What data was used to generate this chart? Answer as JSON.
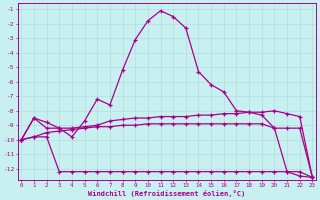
{
  "xlabel": "Windchill (Refroidissement éolien,°C)",
  "background_color": "#c8f0f0",
  "grid_color": "#b0dede",
  "line_color": "#aa0088",
  "x_hours": [
    0,
    1,
    2,
    3,
    4,
    5,
    6,
    7,
    8,
    9,
    10,
    11,
    12,
    13,
    14,
    15,
    16,
    17,
    18,
    19,
    20,
    21,
    22,
    23
  ],
  "line_main": [
    -10.0,
    -8.5,
    -8.8,
    -9.2,
    -9.8,
    -8.7,
    -7.2,
    -7.6,
    -5.2,
    -3.1,
    -1.8,
    -1.1,
    -1.5,
    -2.3,
    -5.3,
    -6.2,
    -6.7,
    -8.0,
    -8.1,
    -8.3,
    -9.2,
    -12.2,
    -12.5,
    -12.6
  ],
  "line_min": [
    -10.0,
    -9.8,
    -9.8,
    -12.2,
    -12.2,
    -12.2,
    -12.2,
    -12.2,
    -12.2,
    -12.2,
    -12.2,
    -12.2,
    -12.2,
    -12.2,
    -12.2,
    -12.2,
    -12.2,
    -12.2,
    -12.2,
    -12.2,
    -12.2,
    -12.2,
    -12.2,
    -12.6
  ],
  "line_max": [
    -10.0,
    -8.5,
    -9.2,
    -9.2,
    -9.2,
    -9.1,
    -9.0,
    -8.7,
    -8.6,
    -8.5,
    -8.5,
    -8.4,
    -8.4,
    -8.4,
    -8.3,
    -8.3,
    -8.2,
    -8.2,
    -8.1,
    -8.1,
    -8.0,
    -8.2,
    -8.4,
    -12.6
  ],
  "line_avg": [
    -10.0,
    -9.8,
    -9.5,
    -9.4,
    -9.3,
    -9.2,
    -9.1,
    -9.1,
    -9.0,
    -9.0,
    -8.9,
    -8.9,
    -8.9,
    -8.9,
    -8.9,
    -8.9,
    -8.9,
    -8.9,
    -8.9,
    -8.9,
    -9.2,
    -9.2,
    -9.2,
    -12.6
  ],
  "ylim_min": -12.8,
  "ylim_max": -0.6,
  "xlim_min": -0.3,
  "xlim_max": 23.3,
  "yticks": [
    -12,
    -11,
    -10,
    -9,
    -8,
    -7,
    -6,
    -5,
    -4,
    -3,
    -2,
    -1
  ],
  "xticks": [
    0,
    1,
    2,
    3,
    4,
    5,
    6,
    7,
    8,
    9,
    10,
    11,
    12,
    13,
    14,
    15,
    16,
    17,
    18,
    19,
    20,
    21,
    22,
    23
  ]
}
